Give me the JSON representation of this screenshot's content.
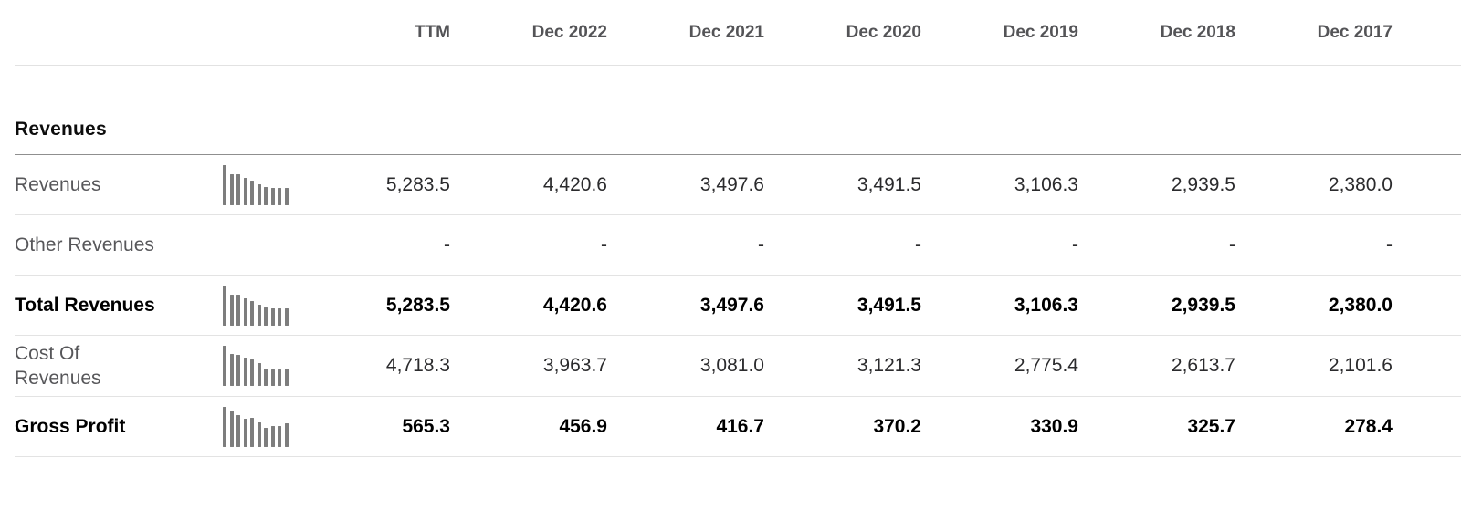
{
  "header": {
    "columns": [
      "TTM",
      "Dec 2022",
      "Dec 2021",
      "Dec 2020",
      "Dec 2019",
      "Dec 2018",
      "Dec 2017"
    ]
  },
  "section": {
    "title": "Revenues"
  },
  "rows": [
    {
      "label": "Revenues",
      "emphasis": false,
      "sparkline": [
        1.0,
        0.78,
        0.78,
        0.68,
        0.62,
        0.53,
        0.45,
        0.44,
        0.44,
        0.44
      ],
      "values": [
        "5,283.5",
        "4,420.6",
        "3,497.6",
        "3,491.5",
        "3,106.3",
        "2,939.5",
        "2,380.0"
      ]
    },
    {
      "label": "Other Revenues",
      "emphasis": false,
      "sparkline": null,
      "values": [
        "-",
        "-",
        "-",
        "-",
        "-",
        "-",
        "-"
      ]
    },
    {
      "label": "Total Revenues",
      "emphasis": true,
      "sparkline": [
        1.0,
        0.78,
        0.78,
        0.68,
        0.62,
        0.53,
        0.45,
        0.44,
        0.44,
        0.44
      ],
      "values": [
        "5,283.5",
        "4,420.6",
        "3,497.6",
        "3,491.5",
        "3,106.3",
        "2,939.5",
        "2,380.0"
      ]
    },
    {
      "label": "Cost Of Revenues",
      "emphasis": false,
      "sparkline": [
        1.0,
        0.8,
        0.78,
        0.7,
        0.66,
        0.56,
        0.44,
        0.42,
        0.42,
        0.44
      ],
      "values": [
        "4,718.3",
        "3,963.7",
        "3,081.0",
        "3,121.3",
        "2,775.4",
        "2,613.7",
        "2,101.6"
      ]
    },
    {
      "label": "Gross Profit",
      "emphasis": true,
      "sparkline": [
        1.0,
        0.92,
        0.8,
        0.71,
        0.73,
        0.61,
        0.47,
        0.52,
        0.52,
        0.58
      ],
      "values": [
        "565.3",
        "456.9",
        "416.7",
        "370.2",
        "330.9",
        "325.7",
        "278.4"
      ]
    }
  ],
  "colors": {
    "header_text": "#545457",
    "label_text": "#57575a",
    "value_text": "#2b2b2d",
    "emphasis_text": "#000000",
    "row_divider": "#e3e3e3",
    "section_divider": "#8f8f8f",
    "sparkline_bar": "#7d7d7d"
  }
}
